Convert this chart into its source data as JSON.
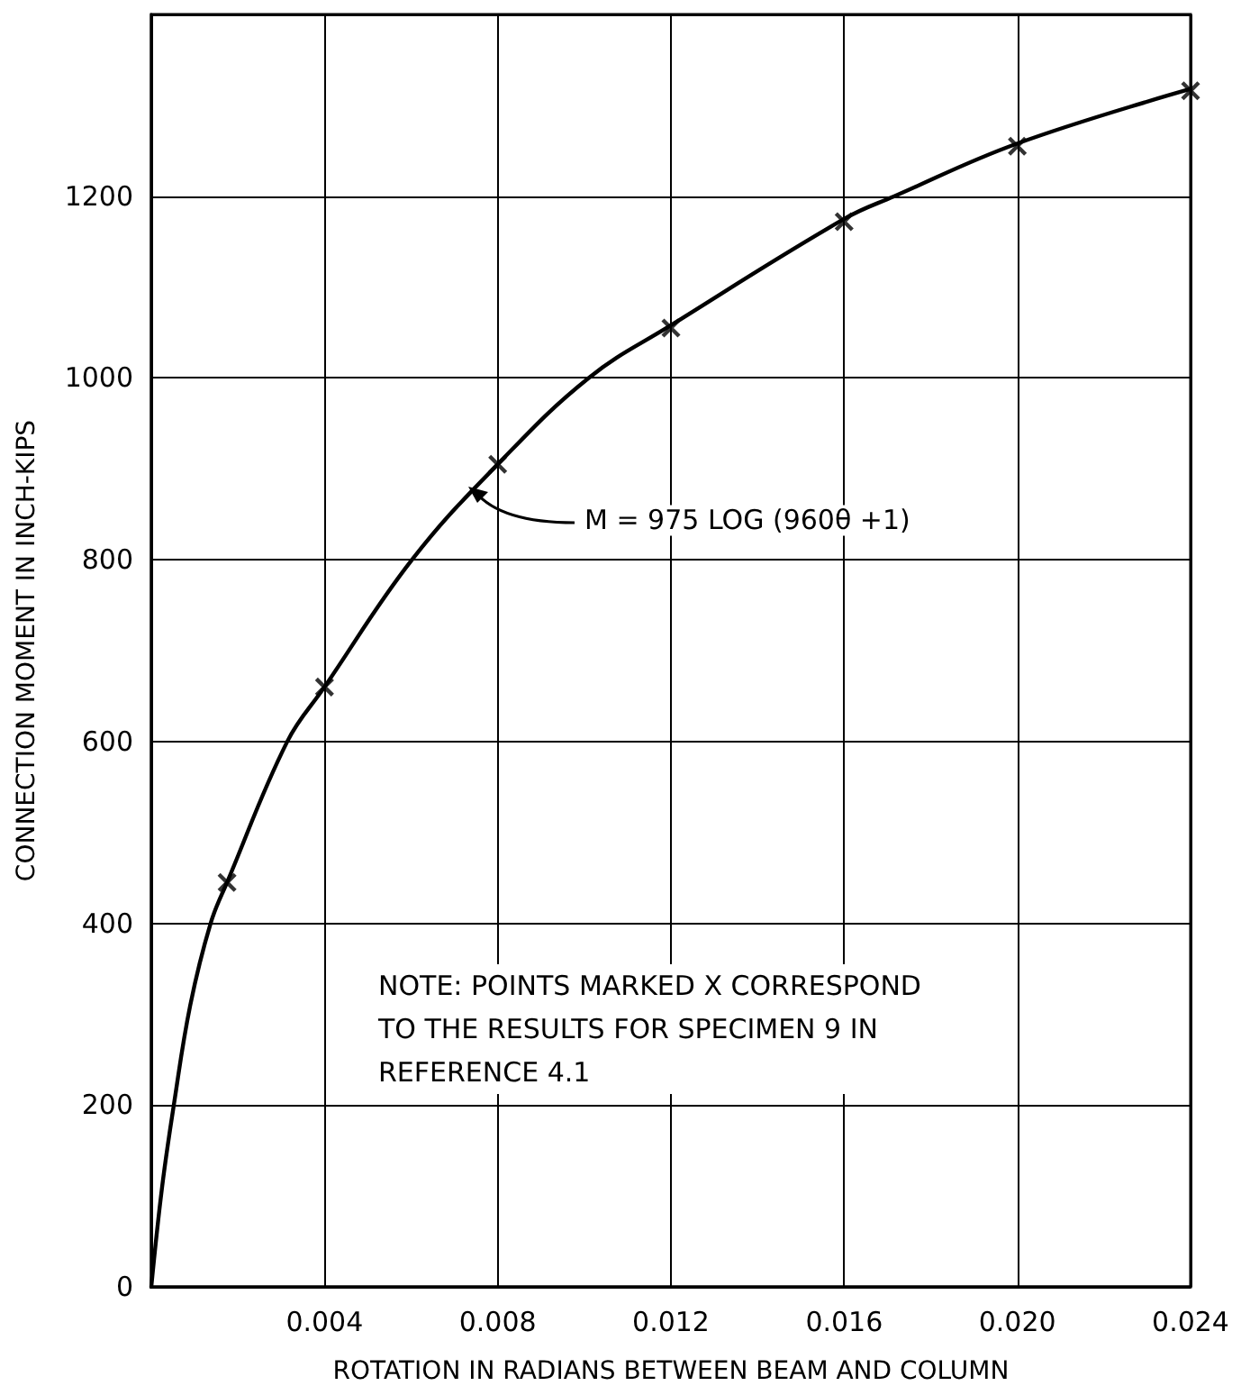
{
  "chart_data": {
    "type": "line",
    "xlabel": "ROTATION IN RADIANS BETWEEN BEAM AND COLUMN",
    "ylabel": "CONNECTION MOMENT IN INCH-KIPS",
    "xlim": [
      0,
      0.024
    ],
    "ylim": [
      0,
      1400
    ],
    "xticks": [
      {
        "value": 0,
        "label": null
      },
      0.004,
      0.008,
      0.012,
      0.016,
      {
        "value": 0.02,
        "label": "0.020"
      },
      0.024
    ],
    "yticks": [
      0,
      200,
      400,
      600,
      800,
      1000,
      1200,
      {
        "value": 1400,
        "label": null
      }
    ],
    "grid": true,
    "series": [
      {
        "type": "line",
        "color": "#000000",
        "marker": "none",
        "line_style": "solid",
        "x": [
          0,
          0.00025,
          0.00052,
          0.0009,
          0.00137,
          0.00175,
          0.00314,
          0.004,
          0.00602,
          0.008,
          0.0101,
          0.012,
          0.016,
          0.01716,
          0.02,
          0.024
        ],
        "values": [
          0,
          110,
          200,
          310,
          400,
          445,
          600,
          660,
          800,
          905,
          1000,
          1058,
          1175,
          1200,
          1258,
          1318
        ]
      },
      {
        "type": "scatter",
        "color": "#000000",
        "marker": "cross",
        "x": [
          0.00175,
          0.004,
          0.008,
          0.012,
          0.016,
          0.02,
          0.024
        ],
        "values": [
          445,
          660,
          905,
          1055,
          1172,
          1255,
          1316
        ]
      }
    ],
    "annotations": [
      {
        "text": "M = 975 LOG (960θ +1)",
        "x": 0.0073,
        "y": 880
      },
      "NOTE: POINTS MARKED X CORRESPOND\nTO THE RESULTS FOR SPECIMEN 9 IN\nREFERENCE 4.1"
    ]
  }
}
